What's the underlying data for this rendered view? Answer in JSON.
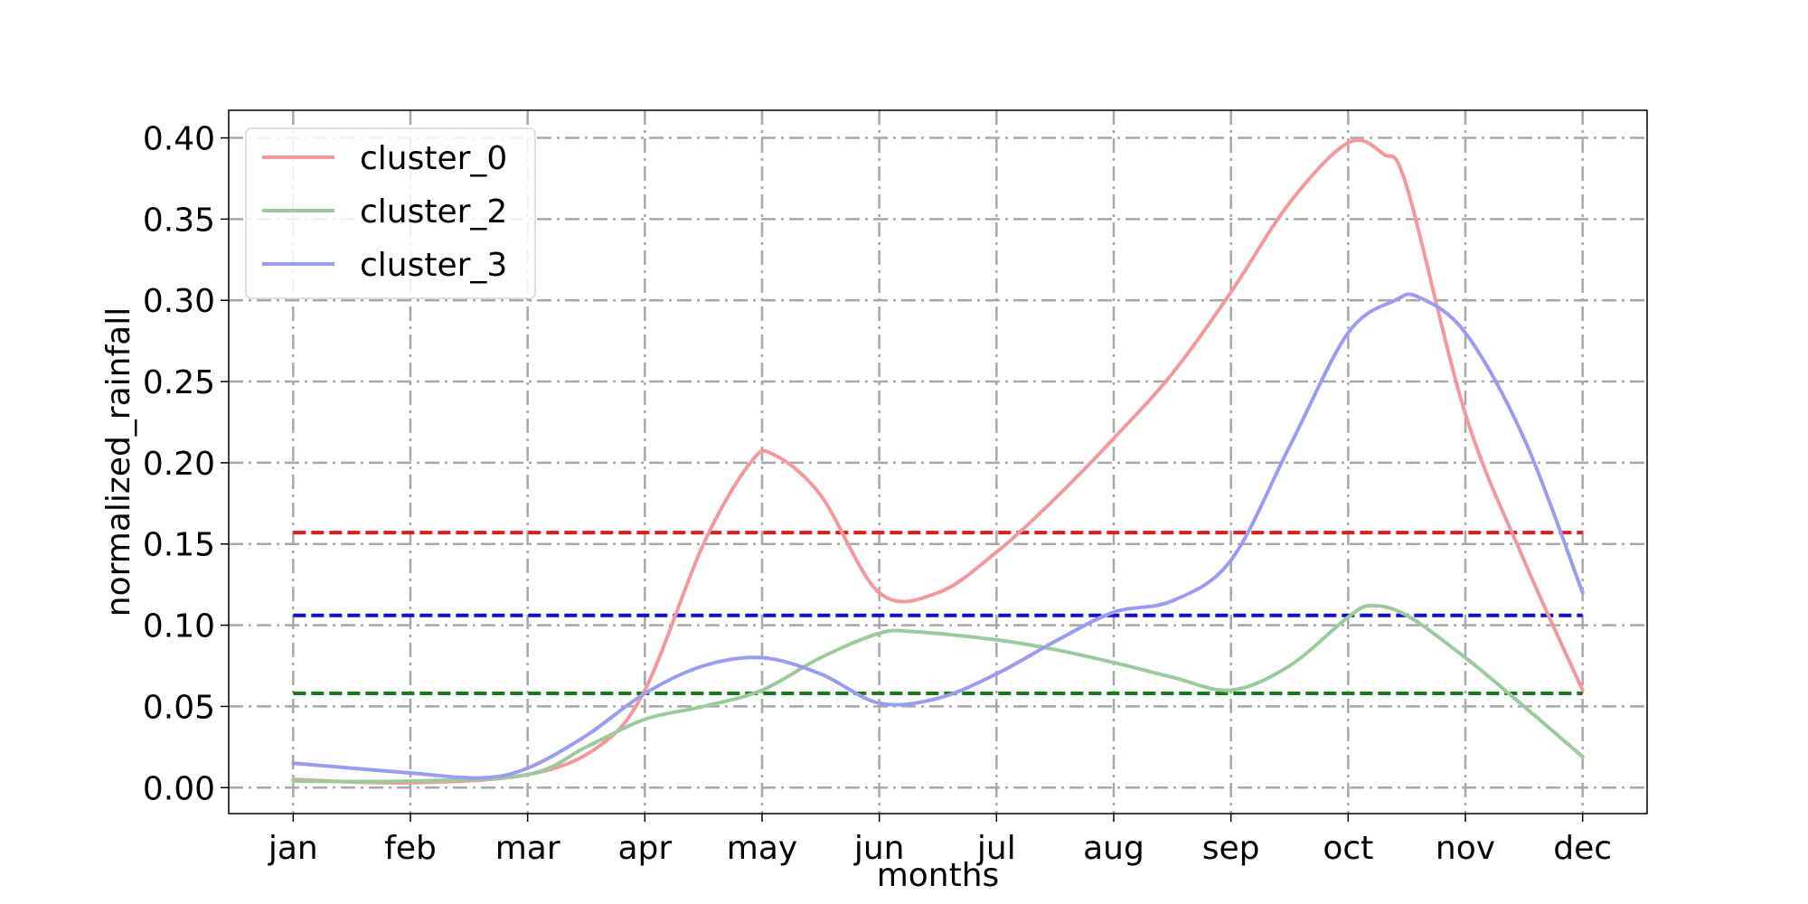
{
  "chart_data": {
    "type": "line",
    "xlabel": "months",
    "ylabel": "normalized_rainfall",
    "categories": [
      "jan",
      "feb",
      "mar",
      "apr",
      "may",
      "jun",
      "jul",
      "aug",
      "sep",
      "oct",
      "nov",
      "dec"
    ],
    "ylim": [
      -0.016,
      0.417
    ],
    "yticks": [
      "0.00",
      "0.05",
      "0.10",
      "0.15",
      "0.20",
      "0.25",
      "0.30",
      "0.35",
      "0.40"
    ],
    "grid": true,
    "legend": "top-left",
    "series": [
      {
        "name": "cluster_0",
        "color": "#f4999b",
        "x": [
          0,
          1,
          2,
          2.6,
          3,
          3.5,
          3.9,
          4.1,
          4.5,
          5,
          5.5,
          6,
          6.5,
          7,
          7.5,
          8,
          8.5,
          9,
          9.3,
          9.5,
          10,
          10.5,
          11
        ],
        "values": [
          0.005,
          0.003,
          0.008,
          0.025,
          0.06,
          0.15,
          0.2,
          0.205,
          0.18,
          0.12,
          0.12,
          0.145,
          0.178,
          0.215,
          0.255,
          0.305,
          0.36,
          0.397,
          0.39,
          0.37,
          0.23,
          0.14,
          0.06
        ]
      },
      {
        "name": "cluster_2",
        "color": "#9acb9a",
        "x": [
          0,
          1,
          2,
          2.5,
          3,
          3.5,
          4,
          4.5,
          5,
          5.3,
          6,
          6.5,
          7,
          7.5,
          8,
          8.5,
          9,
          9.2,
          9.5,
          10,
          10.5,
          11
        ],
        "values": [
          0.004,
          0.004,
          0.008,
          0.025,
          0.042,
          0.05,
          0.06,
          0.08,
          0.095,
          0.096,
          0.091,
          0.085,
          0.077,
          0.068,
          0.06,
          0.075,
          0.105,
          0.112,
          0.106,
          0.08,
          0.05,
          0.019
        ]
      },
      {
        "name": "cluster_3",
        "color": "#9a9cf2",
        "x": [
          0,
          1,
          1.6,
          2,
          2.5,
          3,
          3.5,
          4,
          4.5,
          5,
          5.5,
          6,
          6.5,
          7,
          7.5,
          8,
          8.5,
          9,
          9.4,
          9.6,
          10,
          10.5,
          11
        ],
        "values": [
          0.015,
          0.009,
          0.006,
          0.012,
          0.032,
          0.058,
          0.075,
          0.08,
          0.07,
          0.052,
          0.055,
          0.07,
          0.09,
          0.108,
          0.115,
          0.14,
          0.21,
          0.28,
          0.3,
          0.302,
          0.28,
          0.215,
          0.12
        ]
      }
    ],
    "reference_lines": [
      {
        "value": 0.157,
        "color": "#e41a1c"
      },
      {
        "value": 0.106,
        "color": "#1010d0"
      },
      {
        "value": 0.058,
        "color": "#1a7a1a"
      }
    ]
  }
}
